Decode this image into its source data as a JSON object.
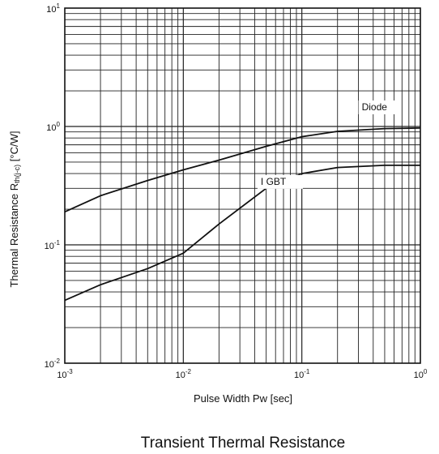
{
  "chart_data": {
    "type": "line",
    "title": "Transient Thermal Resistance",
    "xlabel": "Pulse Width Pw [sec]",
    "ylabel": {
      "main": "Thermal Resistance R",
      "subscript": "th(j-c)",
      "unit": " [°C/W]"
    },
    "x_scale": "log",
    "y_scale": "log",
    "xlim": [
      0.001,
      1
    ],
    "ylim": [
      0.01,
      10
    ],
    "grid": true,
    "x_ticks": [
      {
        "value": 0.001,
        "base": "10",
        "exp": "-3"
      },
      {
        "value": 0.01,
        "base": "10",
        "exp": "-2"
      },
      {
        "value": 0.1,
        "base": "10",
        "exp": "-1"
      },
      {
        "value": 1,
        "base": "10",
        "exp": "0"
      }
    ],
    "y_ticks": [
      {
        "value": 0.01,
        "base": "10",
        "exp": "-2"
      },
      {
        "value": 0.1,
        "base": "10",
        "exp": "-1"
      },
      {
        "value": 1,
        "base": "10",
        "exp": "0"
      },
      {
        "value": 10,
        "base": "10",
        "exp": "1"
      }
    ],
    "series": [
      {
        "name": "Diode",
        "color": "#111111",
        "points": [
          [
            0.001,
            0.19
          ],
          [
            0.002,
            0.26
          ],
          [
            0.005,
            0.35
          ],
          [
            0.01,
            0.43
          ],
          [
            0.02,
            0.52
          ],
          [
            0.05,
            0.68
          ],
          [
            0.1,
            0.82
          ],
          [
            0.2,
            0.91
          ],
          [
            0.5,
            0.96
          ],
          [
            1,
            0.97
          ]
        ]
      },
      {
        "name": "I GBT",
        "color": "#111111",
        "points": [
          [
            0.001,
            0.034
          ],
          [
            0.002,
            0.046
          ],
          [
            0.005,
            0.063
          ],
          [
            0.01,
            0.085
          ],
          [
            0.02,
            0.15
          ],
          [
            0.05,
            0.3
          ],
          [
            0.1,
            0.4
          ],
          [
            0.2,
            0.45
          ],
          [
            0.5,
            0.47
          ],
          [
            1,
            0.47
          ]
        ]
      }
    ]
  }
}
